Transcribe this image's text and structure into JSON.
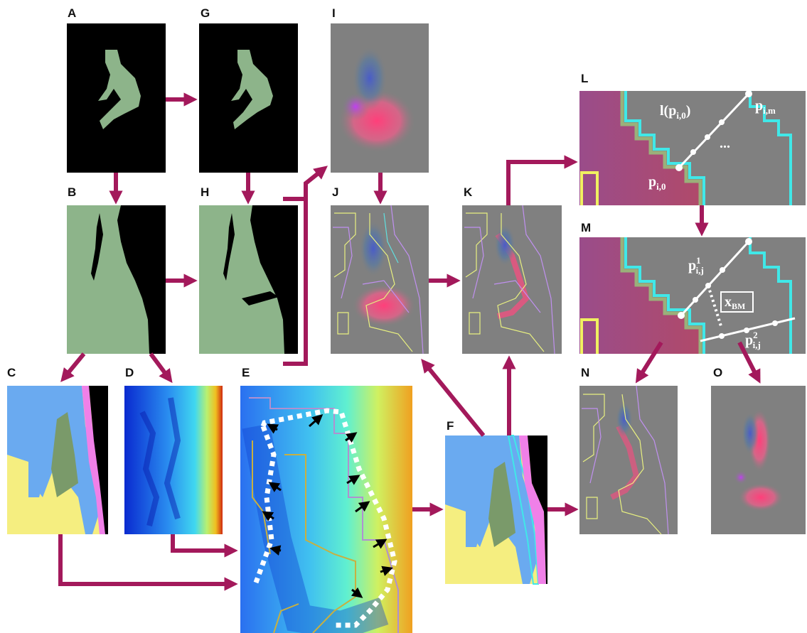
{
  "panels": [
    {
      "label": "A"
    },
    {
      "label": "B"
    },
    {
      "label": "C"
    },
    {
      "label": "D"
    },
    {
      "label": "E"
    },
    {
      "label": "F"
    },
    {
      "label": "G"
    },
    {
      "label": "H"
    },
    {
      "label": "I"
    },
    {
      "label": "J"
    },
    {
      "label": "K"
    },
    {
      "label": "L"
    },
    {
      "label": "M"
    },
    {
      "label": "N"
    },
    {
      "label": "O"
    }
  ],
  "annotations": {
    "line_func": {
      "prefix": "l(",
      "base": "p",
      "sub": "i,0",
      "suffix": ")"
    },
    "p_im": {
      "base": "p",
      "sub": "i,m"
    },
    "ellipsis": "...",
    "p_i0": {
      "base": "p",
      "sub": "i,0"
    },
    "p_ij_1": {
      "base": "p",
      "sup": "1",
      "sub": "i,j"
    },
    "x_bm": {
      "base": "x",
      "sub": "BM"
    },
    "p_ij_2": {
      "base": "p",
      "sup": "2",
      "sub": "i,j"
    }
  }
}
